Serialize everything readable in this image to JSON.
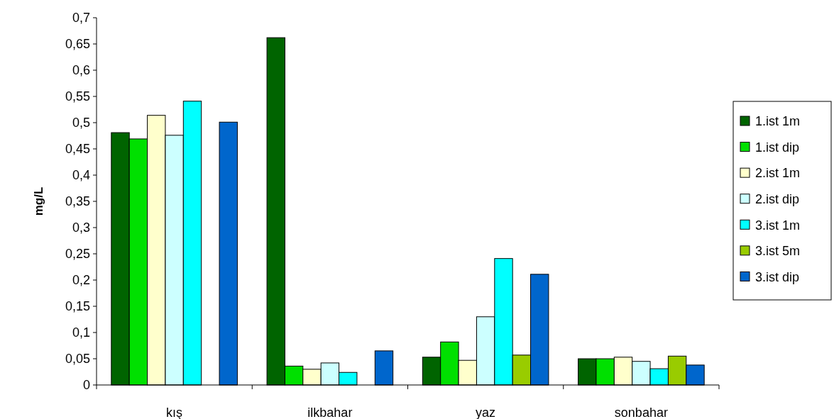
{
  "chart_data": {
    "type": "bar",
    "ylabel": "mg/L",
    "categories": [
      "kış",
      "ilkbahar",
      "yaz",
      "sonbahar"
    ],
    "series": [
      {
        "name": "1.ist 1m",
        "color": "#006400",
        "values": [
          0.481,
          0.662,
          0.053,
          0.05
        ]
      },
      {
        "name": "1.ist dip",
        "color": "#00e000",
        "values": [
          0.469,
          0.036,
          0.082,
          0.05
        ]
      },
      {
        "name": "2.ist 1m",
        "color": "#ffffcc",
        "values": [
          0.514,
          0.03,
          0.047,
          0.053
        ]
      },
      {
        "name": "2.ist dip",
        "color": "#ccffff",
        "values": [
          0.476,
          0.042,
          0.13,
          0.045
        ]
      },
      {
        "name": "3.ist 1m",
        "color": "#00ffff",
        "values": [
          0.541,
          0.024,
          0.241,
          0.031
        ]
      },
      {
        "name": "3.ist 5m",
        "color": "#99cc00",
        "values": [
          null,
          null,
          0.057,
          0.055
        ]
      },
      {
        "name": "3.ist dip",
        "color": "#0066cc",
        "values": [
          0.501,
          0.065,
          0.211,
          0.038
        ]
      }
    ],
    "ylim": [
      0,
      0.7
    ],
    "yticks": [
      {
        "value": 0,
        "label": "0"
      },
      {
        "value": 0.05,
        "label": "0,05"
      },
      {
        "value": 0.1,
        "label": "0,1"
      },
      {
        "value": 0.15,
        "label": "0,15"
      },
      {
        "value": 0.2,
        "label": "0,2"
      },
      {
        "value": 0.25,
        "label": "0,25"
      },
      {
        "value": 0.3,
        "label": "0,3"
      },
      {
        "value": 0.35,
        "label": "0,35"
      },
      {
        "value": 0.4,
        "label": "0,4"
      },
      {
        "value": 0.45,
        "label": "0,45"
      },
      {
        "value": 0.5,
        "label": "0,5"
      },
      {
        "value": 0.55,
        "label": "0,55"
      },
      {
        "value": 0.6,
        "label": "0,6"
      },
      {
        "value": 0.65,
        "label": "0,65"
      },
      {
        "value": 0.7,
        "label": "0,7"
      }
    ],
    "grid": false,
    "legend": "right"
  }
}
